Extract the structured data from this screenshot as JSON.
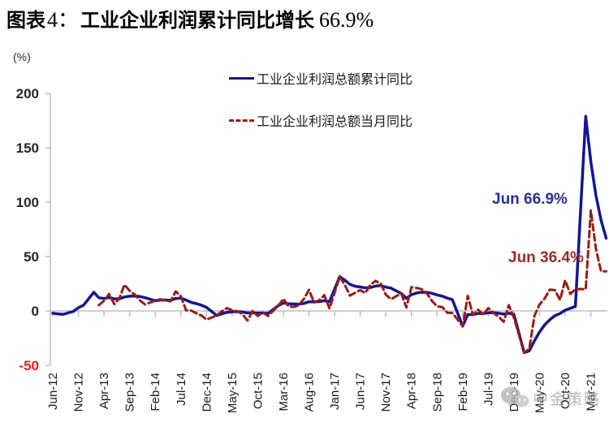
{
  "title": {
    "label": "图表",
    "number": "4：",
    "main": "工业企业利润累计同比增长",
    "value": "66.9%"
  },
  "axis_unit_label": "(%)",
  "legend": [
    {
      "label": "工业企业利润总额累计同比",
      "color": "#14149B",
      "style": "solid"
    },
    {
      "label": "工业企业利润总额当月同比",
      "color": "#9E1A15",
      "style": "dashed"
    }
  ],
  "annotations": [
    {
      "text": "Jun 66.9%",
      "color": "#2B2BA6",
      "series": "cumulative"
    },
    {
      "text": "Jun 36.4%",
      "color": "#A02A22",
      "series": "monthly"
    }
  ],
  "watermark": {
    "text": "中金策略"
  },
  "chart_data": {
    "type": "line",
    "title": "工业企业利润累计同比增长 66.9%",
    "ylabel": "(%)",
    "ylim": [
      -50,
      200
    ],
    "yticks": [
      200,
      150,
      100,
      50,
      0,
      -50
    ],
    "ytick_color": "#262626",
    "negative_ytick_color": "#FF1A1A",
    "axis_color": "#BFBFBF",
    "grid": false,
    "legend_position": "top-center",
    "xtick_every": 5,
    "categories": [
      "Jun-12",
      "Jul-12",
      "Aug-12",
      "Sep-12",
      "Oct-12",
      "Nov-12",
      "Dec-12",
      "Jan-13",
      "Feb-13",
      "Mar-13",
      "Apr-13",
      "May-13",
      "Jun-13",
      "Jul-13",
      "Aug-13",
      "Sep-13",
      "Oct-13",
      "Nov-13",
      "Dec-13",
      "Jan-14",
      "Feb-14",
      "Mar-14",
      "Apr-14",
      "May-14",
      "Jun-14",
      "Jul-14",
      "Aug-14",
      "Sep-14",
      "Oct-14",
      "Nov-14",
      "Dec-14",
      "Jan-15",
      "Feb-15",
      "Mar-15",
      "Apr-15",
      "May-15",
      "Jun-15",
      "Jul-15",
      "Aug-15",
      "Sep-15",
      "Oct-15",
      "Nov-15",
      "Dec-15",
      "Jan-16",
      "Feb-16",
      "Mar-16",
      "Apr-16",
      "May-16",
      "Jun-16",
      "Jul-16",
      "Aug-16",
      "Sep-16",
      "Oct-16",
      "Nov-16",
      "Dec-16",
      "Jan-17",
      "Feb-17",
      "Mar-17",
      "Apr-17",
      "May-17",
      "Jun-17",
      "Jul-17",
      "Aug-17",
      "Sep-17",
      "Oct-17",
      "Nov-17",
      "Dec-17",
      "Jan-18",
      "Feb-18",
      "Mar-18",
      "Apr-18",
      "May-18",
      "Jun-18",
      "Jul-18",
      "Aug-18",
      "Sep-18",
      "Oct-18",
      "Nov-18",
      "Dec-18",
      "Jan-19",
      "Feb-19",
      "Mar-19",
      "Apr-19",
      "May-19",
      "Jun-19",
      "Jul-19",
      "Aug-19",
      "Sep-19",
      "Oct-19",
      "Nov-19",
      "Dec-19",
      "Jan-20",
      "Feb-20",
      "Mar-20",
      "Apr-20",
      "May-20",
      "Jun-20",
      "Jul-20",
      "Aug-20",
      "Sep-20",
      "Oct-20",
      "Nov-20",
      "Dec-20",
      "Jan-21",
      "Feb-21",
      "Mar-21",
      "Apr-21",
      "May-21",
      "Jun-21"
    ],
    "series": [
      {
        "name": "工业企业利润总额累计同比",
        "color": "#14149B",
        "dash": "solid",
        "width": 3.5,
        "values": [
          -2.2,
          -2.7,
          -3.1,
          -1.8,
          -0.5,
          3.0,
          5.3,
          null,
          17.2,
          12.1,
          11.4,
          12.3,
          11.1,
          11.1,
          12.8,
          13.5,
          13.7,
          13.2,
          12.2,
          null,
          9.4,
          10.1,
          10.0,
          9.8,
          11.4,
          11.7,
          10.0,
          7.9,
          6.7,
          5.3,
          3.3,
          null,
          -4.2,
          -2.7,
          -1.3,
          -0.8,
          -0.7,
          -1.0,
          -1.9,
          -1.7,
          -2.0,
          -1.9,
          -2.3,
          null,
          4.8,
          7.4,
          6.5,
          6.4,
          6.2,
          6.9,
          8.4,
          8.4,
          8.6,
          9.4,
          8.5,
          null,
          31.5,
          28.3,
          24.4,
          22.7,
          22.0,
          21.2,
          21.6,
          22.8,
          23.3,
          21.9,
          21.0,
          null,
          16.1,
          11.6,
          15.0,
          16.5,
          17.2,
          17.1,
          16.2,
          14.7,
          13.6,
          11.8,
          10.3,
          null,
          -14.0,
          -3.3,
          -3.4,
          -2.3,
          -2.4,
          -1.7,
          -1.7,
          -2.1,
          -2.9,
          -2.1,
          -3.3,
          null,
          -38.3,
          -36.7,
          -27.4,
          -19.3,
          -12.8,
          -8.1,
          -4.4,
          -2.4,
          0.7,
          2.4,
          4.1,
          null,
          178.9,
          137.3,
          106.1,
          83.4,
          66.9
        ]
      },
      {
        "name": "工业企业利润总额当月同比",
        "color": "#9E1A15",
        "dash": "dashed",
        "width": 3,
        "values": [
          null,
          null,
          null,
          null,
          null,
          null,
          null,
          null,
          null,
          5.3,
          9.3,
          15.5,
          6.3,
          11.6,
          24.2,
          18.4,
          15.1,
          9.7,
          6.0,
          null,
          9.4,
          10.7,
          9.6,
          8.9,
          17.9,
          13.5,
          0.6,
          0.4,
          -2.1,
          -4.2,
          -8.0,
          null,
          -4.2,
          -0.4,
          2.6,
          0.6,
          -0.3,
          -2.9,
          -8.8,
          -0.1,
          -4.6,
          -1.4,
          -4.7,
          null,
          4.8,
          11.1,
          4.2,
          3.7,
          5.1,
          11.0,
          19.5,
          7.7,
          9.8,
          14.5,
          2.3,
          null,
          31.5,
          23.8,
          14.0,
          16.7,
          19.1,
          16.5,
          24.0,
          27.7,
          25.1,
          14.9,
          10.8,
          null,
          16.1,
          3.1,
          21.9,
          21.1,
          20.0,
          16.2,
          9.2,
          4.1,
          3.6,
          -1.8,
          -1.9,
          null,
          -14.0,
          13.9,
          -3.7,
          1.1,
          -3.1,
          2.6,
          -2.0,
          -5.3,
          -9.9,
          5.4,
          -6.3,
          null,
          -38.3,
          -34.9,
          -4.3,
          6.0,
          11.5,
          19.6,
          19.1,
          10.1,
          28.2,
          15.5,
          20.1,
          null,
          20.0,
          92.3,
          57.0,
          36.4,
          36.4
        ]
      }
    ]
  }
}
